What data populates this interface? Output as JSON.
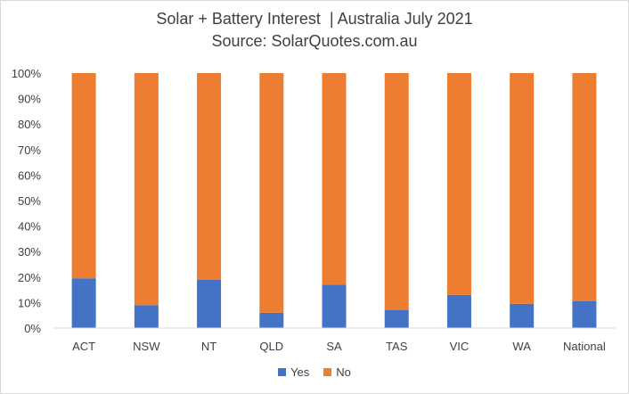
{
  "chart_data": {
    "type": "bar",
    "stacked": true,
    "title": "Solar + Battery Interest  | Australia July 2021",
    "subtitle": "Source: SolarQuotes.com.au",
    "categories": [
      "ACT",
      "NSW",
      "NT",
      "QLD",
      "SA",
      "TAS",
      "VIC",
      "WA",
      "National"
    ],
    "series": [
      {
        "name": "Yes",
        "color": "#4472c4",
        "values": [
          19.5,
          9,
          19,
          6,
          17,
          7,
          13,
          9.5,
          10.5
        ]
      },
      {
        "name": "No",
        "color": "#ed7d31",
        "values": [
          80.5,
          91,
          81,
          94,
          83,
          93,
          87,
          90.5,
          89.5
        ]
      }
    ],
    "yticks": [
      "0%",
      "10%",
      "20%",
      "30%",
      "40%",
      "50%",
      "60%",
      "70%",
      "80%",
      "90%",
      "100%"
    ],
    "ylim": [
      0,
      100
    ],
    "grid": false,
    "legend": "bottom"
  }
}
